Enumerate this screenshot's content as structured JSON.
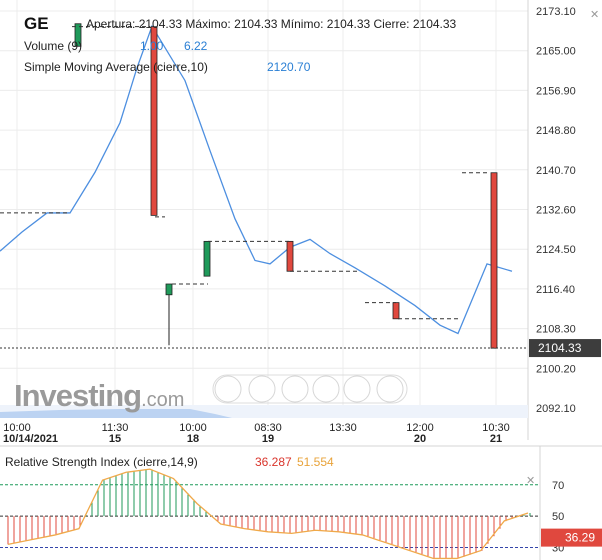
{
  "header": {
    "ticker": "GE",
    "ohlc": "Apertura: 2104.33 Máximo: 2104.33 Mínimo: 2104.33 Cierre: 2104.33",
    "volume_label": "Volume (9)",
    "volume_value_1": "1.00",
    "volume_value_2": "6.22",
    "sma_label": "Simple Moving Average (cierre,10)",
    "sma_value": "2120.70"
  },
  "rsi": {
    "title": "Relative Strength Index (cierre,14,9)",
    "value_1": "36.287",
    "value_2": "51.554",
    "current_badge": "36.29",
    "axis_labels": [
      "70",
      "50",
      "30"
    ]
  },
  "watermark": {
    "brand": "Investing",
    "suffix": ".com"
  },
  "colors": {
    "up": "#1f9a5a",
    "down": "#e0483e",
    "sma_line": "#4d8fe0",
    "rsi_line": "#f0a94a",
    "rsi_signal": "#d9342b",
    "badge": "#3d3d3d",
    "rsi_badge": "#e0483e"
  },
  "chart_data": {
    "type": "candlestick",
    "y_axis_ticks": [
      "2173.10",
      "2165.00",
      "2156.90",
      "2148.80",
      "2140.70",
      "2132.60",
      "2124.50",
      "2116.40",
      "2108.30",
      "2100.20",
      "2092.10"
    ],
    "ylim": [
      2090.0,
      2175.0
    ],
    "current_price": "2104.33",
    "x_tick_labels": [
      {
        "time": "10:00",
        "date": "10/14/2021"
      },
      {
        "time": "11:30",
        "date": "15"
      },
      {
        "time": "10:00",
        "date": "18"
      },
      {
        "time": "08:30",
        "date": "19"
      },
      {
        "time": "13:30",
        "date": ""
      },
      {
        "time": "12:00",
        "date": "20"
      },
      {
        "time": "10:30",
        "date": "21"
      }
    ],
    "candles": [
      {
        "open": 2165.9,
        "close": 2170.5,
        "high": 2170.5,
        "low": 2165.9
      },
      {
        "open": 2169.9,
        "close": 2131.4,
        "high": 2169.9,
        "low": 2131.4
      },
      {
        "open": 2115.2,
        "close": 2117.4,
        "high": 2117.4,
        "low": 2104.9
      },
      {
        "open": 2119.0,
        "close": 2126.1,
        "high": 2126.1,
        "low": 2119.0
      },
      {
        "open": 2126.1,
        "close": 2120.0,
        "high": 2126.1,
        "low": 2120.0
      },
      {
        "open": 2113.6,
        "close": 2110.3,
        "high": 2113.6,
        "low": 2110.3
      },
      {
        "open": 2140.1,
        "close": 2104.3,
        "high": 2140.1,
        "low": 2104.3
      }
    ],
    "sma": [
      2124.1,
      2128.0,
      2131.9,
      2131.9,
      2140.2,
      2150.3,
      2161.5,
      2170.0,
      2158.9,
      2144.6,
      2130.7,
      2122.2,
      2121.5,
      2124.9,
      2126.5,
      2123.6,
      2120.7,
      2117.0,
      2113.0,
      2109.0,
      2107.3,
      2121.5,
      2120.0
    ],
    "rsi_series": [
      32,
      35,
      38,
      42,
      73,
      78,
      80,
      74,
      58,
      45,
      42,
      40,
      39,
      41,
      40,
      38,
      33,
      28,
      23,
      23,
      28,
      47,
      52
    ],
    "rsi_ylim": [
      22,
      82
    ]
  }
}
